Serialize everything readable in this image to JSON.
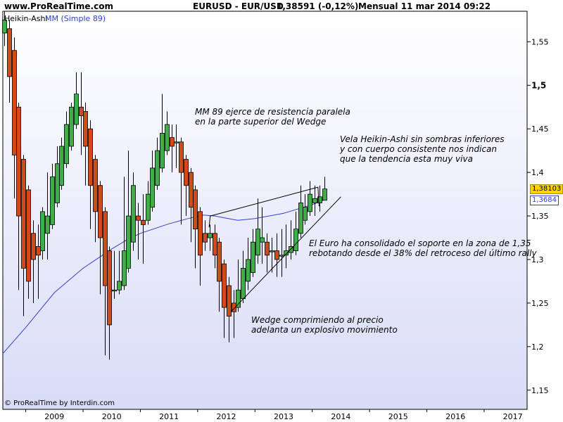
{
  "header": {
    "site": "www.ProRealTime.com",
    "instrument": "EURUSD - EUR/USD",
    "quote": "1,38591 (-0,12%)",
    "period_time": "Mensual  11 mar 2014 09:22"
  },
  "legend": {
    "series1": "Heikin-Ashi",
    "series2": "MM (Simple 89)",
    "series2_color": "#3340c8"
  },
  "footer": {
    "copyright": "© ProRealTime by Interdin.com"
  },
  "annotations": {
    "mm89": [
      "MM 89 ejerce de resistencia paralela",
      "en la parte superior del Wedge"
    ],
    "vela": [
      "Vela Heikin-Ashi sin sombras inferiores",
      "y con cuerpo consistente nos indican",
      "que la tendencia esta muy viva"
    ],
    "soporte": [
      "El Euro ha consolidado el soporte en la zona de 1,35",
      "rebotando desde el 38% del retroceso del último rally"
    ],
    "wedge": [
      "Wedge comprimiendo al precio",
      "adelanta un explosivo movimiento"
    ]
  },
  "price_labels": {
    "last": "1,38103",
    "last_value": 1.38103,
    "last_bg": "#ffd200",
    "ma": "1,3684",
    "ma_value": 1.3684,
    "ma_color": "#3340c8"
  },
  "colors": {
    "up": "#3fae49",
    "down": "#d24a1a",
    "ma": "#3340c8",
    "bg_top": "#ffffff",
    "bg_bottom": "#d8dcf7"
  },
  "chart_data": {
    "type": "candlestick",
    "subtype": "heikin-ashi",
    "title": "EURUSD - EUR/USD",
    "timeframe": "Mensual",
    "x_ticks": [
      "2009",
      "2010",
      "2011",
      "2012",
      "2013",
      "2014",
      "2015",
      "2016",
      "2017"
    ],
    "x_range": [
      2008.6,
      2017.75
    ],
    "y_ticks": [
      "1,15",
      "1,2",
      "1,25",
      "1,3",
      "1,35",
      "1,4",
      "1,45",
      "1,5",
      "1,55"
    ],
    "y_tick_values": [
      1.15,
      1.2,
      1.25,
      1.3,
      1.35,
      1.4,
      1.45,
      1.5,
      1.55
    ],
    "y_range": [
      1.128,
      1.585
    ],
    "y_axis_position": "right",
    "grid": false,
    "candles": [
      {
        "t": 2008.625,
        "o": 1.56,
        "c": 1.575,
        "h": 1.585,
        "l": 1.545
      },
      {
        "t": 2008.708,
        "o": 1.565,
        "c": 1.51,
        "h": 1.575,
        "l": 1.48
      },
      {
        "t": 2008.792,
        "o": 1.54,
        "c": 1.42,
        "h": 1.555,
        "l": 1.37
      },
      {
        "t": 2008.875,
        "o": 1.475,
        "c": 1.35,
        "h": 1.48,
        "l": 1.265
      },
      {
        "t": 2008.958,
        "o": 1.415,
        "c": 1.29,
        "h": 1.42,
        "l": 1.235
      },
      {
        "t": 2009.042,
        "o": 1.38,
        "c": 1.275,
        "h": 1.385,
        "l": 1.255
      },
      {
        "t": 2009.125,
        "o": 1.33,
        "c": 1.3,
        "h": 1.345,
        "l": 1.25
      },
      {
        "t": 2009.208,
        "o": 1.315,
        "c": 1.305,
        "h": 1.34,
        "l": 1.255
      },
      {
        "t": 2009.292,
        "o": 1.31,
        "c": 1.355,
        "h": 1.36,
        "l": 1.3
      },
      {
        "t": 2009.375,
        "o": 1.33,
        "c": 1.35,
        "h": 1.4,
        "l": 1.3
      },
      {
        "t": 2009.458,
        "o": 1.34,
        "c": 1.395,
        "h": 1.41,
        "l": 1.335
      },
      {
        "t": 2009.542,
        "o": 1.365,
        "c": 1.41,
        "h": 1.43,
        "l": 1.36
      },
      {
        "t": 2009.625,
        "o": 1.385,
        "c": 1.43,
        "h": 1.44,
        "l": 1.38
      },
      {
        "t": 2009.708,
        "o": 1.41,
        "c": 1.455,
        "h": 1.47,
        "l": 1.405
      },
      {
        "t": 2009.792,
        "o": 1.43,
        "c": 1.475,
        "h": 1.48,
        "l": 1.425
      },
      {
        "t": 2009.875,
        "o": 1.455,
        "c": 1.49,
        "h": 1.515,
        "l": 1.45
      },
      {
        "t": 2009.958,
        "o": 1.475,
        "c": 1.465,
        "h": 1.515,
        "l": 1.42
      },
      {
        "t": 2010.042,
        "o": 1.47,
        "c": 1.43,
        "h": 1.48,
        "l": 1.385
      },
      {
        "t": 2010.125,
        "o": 1.45,
        "c": 1.385,
        "h": 1.46,
        "l": 1.335
      },
      {
        "t": 2010.208,
        "o": 1.415,
        "c": 1.355,
        "h": 1.42,
        "l": 1.32
      },
      {
        "t": 2010.292,
        "o": 1.385,
        "c": 1.325,
        "h": 1.39,
        "l": 1.26
      },
      {
        "t": 2010.375,
        "o": 1.355,
        "c": 1.27,
        "h": 1.36,
        "l": 1.19
      },
      {
        "t": 2010.458,
        "o": 1.31,
        "c": 1.225,
        "h": 1.315,
        "l": 1.185
      },
      {
        "t": 2010.542,
        "o": 1.265,
        "c": 1.265,
        "h": 1.31,
        "l": 1.255
      },
      {
        "t": 2010.625,
        "o": 1.265,
        "c": 1.275,
        "h": 1.31,
        "l": 1.26
      },
      {
        "t": 2010.708,
        "o": 1.27,
        "c": 1.31,
        "h": 1.395,
        "l": 1.265
      },
      {
        "t": 2010.792,
        "o": 1.29,
        "c": 1.35,
        "h": 1.425,
        "l": 1.285
      },
      {
        "t": 2010.875,
        "o": 1.32,
        "c": 1.385,
        "h": 1.4,
        "l": 1.31
      },
      {
        "t": 2010.958,
        "o": 1.35,
        "c": 1.345,
        "h": 1.365,
        "l": 1.3
      },
      {
        "t": 2011.042,
        "o": 1.345,
        "c": 1.34,
        "h": 1.375,
        "l": 1.295
      },
      {
        "t": 2011.125,
        "o": 1.345,
        "c": 1.375,
        "h": 1.39,
        "l": 1.34
      },
      {
        "t": 2011.208,
        "o": 1.36,
        "c": 1.405,
        "h": 1.425,
        "l": 1.355
      },
      {
        "t": 2011.292,
        "o": 1.385,
        "c": 1.425,
        "h": 1.44,
        "l": 1.38
      },
      {
        "t": 2011.375,
        "o": 1.405,
        "c": 1.445,
        "h": 1.49,
        "l": 1.4
      },
      {
        "t": 2011.458,
        "o": 1.425,
        "c": 1.455,
        "h": 1.47,
        "l": 1.42
      },
      {
        "t": 2011.542,
        "o": 1.44,
        "c": 1.43,
        "h": 1.455,
        "l": 1.4
      },
      {
        "t": 2011.625,
        "o": 1.435,
        "c": 1.435,
        "h": 1.455,
        "l": 1.405
      },
      {
        "t": 2011.708,
        "o": 1.435,
        "c": 1.4,
        "h": 1.44,
        "l": 1.34
      },
      {
        "t": 2011.792,
        "o": 1.415,
        "c": 1.385,
        "h": 1.42,
        "l": 1.35
      },
      {
        "t": 2011.875,
        "o": 1.4,
        "c": 1.36,
        "h": 1.405,
        "l": 1.32
      },
      {
        "t": 2011.958,
        "o": 1.38,
        "c": 1.335,
        "h": 1.385,
        "l": 1.29
      },
      {
        "t": 2012.042,
        "o": 1.355,
        "c": 1.305,
        "h": 1.36,
        "l": 1.27
      },
      {
        "t": 2012.125,
        "o": 1.33,
        "c": 1.32,
        "h": 1.345,
        "l": 1.31
      },
      {
        "t": 2012.208,
        "o": 1.325,
        "c": 1.33,
        "h": 1.34,
        "l": 1.31
      },
      {
        "t": 2012.292,
        "o": 1.33,
        "c": 1.305,
        "h": 1.34,
        "l": 1.29
      },
      {
        "t": 2012.375,
        "o": 1.32,
        "c": 1.275,
        "h": 1.325,
        "l": 1.24
      },
      {
        "t": 2012.458,
        "o": 1.295,
        "c": 1.245,
        "h": 1.3,
        "l": 1.21
      },
      {
        "t": 2012.542,
        "o": 1.27,
        "c": 1.235,
        "h": 1.28,
        "l": 1.205
      },
      {
        "t": 2012.625,
        "o": 1.25,
        "c": 1.24,
        "h": 1.265,
        "l": 1.21
      },
      {
        "t": 2012.708,
        "o": 1.245,
        "c": 1.265,
        "h": 1.3,
        "l": 1.24
      },
      {
        "t": 2012.792,
        "o": 1.255,
        "c": 1.29,
        "h": 1.31,
        "l": 1.25
      },
      {
        "t": 2012.875,
        "o": 1.275,
        "c": 1.3,
        "h": 1.325,
        "l": 1.265
      },
      {
        "t": 2012.958,
        "o": 1.285,
        "c": 1.32,
        "h": 1.335,
        "l": 1.28
      },
      {
        "t": 2013.042,
        "o": 1.305,
        "c": 1.335,
        "h": 1.37,
        "l": 1.295
      },
      {
        "t": 2013.125,
        "o": 1.32,
        "c": 1.325,
        "h": 1.36,
        "l": 1.295
      },
      {
        "t": 2013.208,
        "o": 1.32,
        "c": 1.305,
        "h": 1.33,
        "l": 1.285
      },
      {
        "t": 2013.292,
        "o": 1.31,
        "c": 1.31,
        "h": 1.325,
        "l": 1.285
      },
      {
        "t": 2013.375,
        "o": 1.31,
        "c": 1.3,
        "h": 1.33,
        "l": 1.28
      },
      {
        "t": 2013.458,
        "o": 1.305,
        "c": 1.305,
        "h": 1.335,
        "l": 1.28
      },
      {
        "t": 2013.542,
        "o": 1.305,
        "c": 1.31,
        "h": 1.34,
        "l": 1.29
      },
      {
        "t": 2013.625,
        "o": 1.308,
        "c": 1.315,
        "h": 1.345,
        "l": 1.3
      },
      {
        "t": 2013.708,
        "o": 1.31,
        "c": 1.335,
        "h": 1.355,
        "l": 1.305
      },
      {
        "t": 2013.792,
        "o": 1.33,
        "c": 1.365,
        "h": 1.385,
        "l": 1.325
      },
      {
        "t": 2013.875,
        "o": 1.345,
        "c": 1.36,
        "h": 1.375,
        "l": 1.34
      },
      {
        "t": 2013.958,
        "o": 1.355,
        "c": 1.375,
        "h": 1.39,
        "l": 1.35
      },
      {
        "t": 2014.042,
        "o": 1.365,
        "c": 1.37,
        "h": 1.385,
        "l": 1.35
      },
      {
        "t": 2014.125,
        "o": 1.365,
        "c": 1.372,
        "h": 1.385,
        "l": 1.355
      },
      {
        "t": 2014.208,
        "o": 1.368,
        "c": 1.381,
        "h": 1.395,
        "l": 1.368
      }
    ],
    "moving_average": {
      "name": "MM (Simple 89)",
      "points": [
        [
          2008.6,
          1.192
        ],
        [
          2009.0,
          1.222
        ],
        [
          2009.5,
          1.262
        ],
        [
          2010.0,
          1.29
        ],
        [
          2010.5,
          1.312
        ],
        [
          2010.75,
          1.322
        ],
        [
          2011.0,
          1.33
        ],
        [
          2011.5,
          1.341
        ],
        [
          2011.83,
          1.347
        ],
        [
          2012.1,
          1.351
        ],
        [
          2012.3,
          1.35
        ],
        [
          2012.7,
          1.345
        ],
        [
          2013.0,
          1.347
        ],
        [
          2013.5,
          1.353
        ],
        [
          2014.0,
          1.363
        ],
        [
          2014.21,
          1.3684
        ]
      ]
    },
    "trendlines": [
      {
        "name": "wedge-upper",
        "points": [
          [
            2012.2,
            1.337
          ],
          [
            2012.22,
            1.35
          ],
          [
            2014.1,
            1.383
          ],
          [
            2014.12,
            1.361
          ]
        ]
      },
      {
        "name": "wedge-lower",
        "points": [
          [
            2012.58,
            1.24
          ],
          [
            2014.5,
            1.372
          ]
        ]
      }
    ]
  }
}
